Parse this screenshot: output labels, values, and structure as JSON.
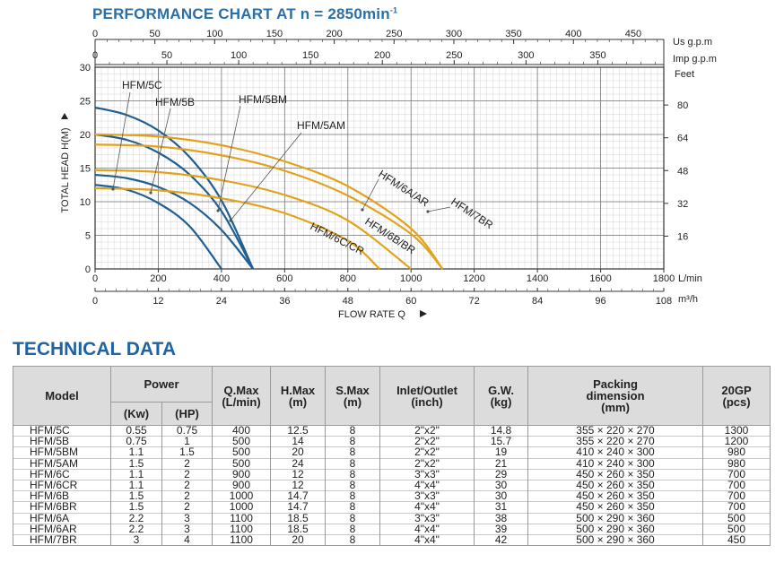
{
  "chart_title_main": "PERFORMANCE CHART AT n = 2850min",
  "chart_title_sup": "-1",
  "chart_data": {
    "type": "line",
    "title": "PERFORMANCE CHART AT n = 2850min-1",
    "xlabel": "FLOW RATE Q",
    "ylabel": "TOTAL HEAD H(M)",
    "x_unit_lmin": "L/min",
    "x_unit_m3h": "m³/h",
    "top_unit_us": "Us g.p.m",
    "top_unit_imp": "Imp g.p.m",
    "right_unit": "Feet",
    "xlim": [
      0,
      1800
    ],
    "ylim": [
      0,
      30
    ],
    "x_ticks_lmin": [
      "0",
      "200",
      "400",
      "600",
      "800",
      "1000",
      "1200",
      "1400",
      "1600",
      "1800"
    ],
    "x_ticks_m3h": [
      "0",
      "12",
      "24",
      "36",
      "48",
      "60",
      "72",
      "84",
      "96",
      "108"
    ],
    "y_ticks": [
      "0",
      "5",
      "10",
      "15",
      "20",
      "25",
      "30"
    ],
    "feet_ticks": [
      "16",
      "32",
      "48",
      "64",
      "80"
    ],
    "us_gpm_ticks": [
      "0",
      "50",
      "100",
      "150",
      "200",
      "250",
      "300",
      "350",
      "400",
      "450"
    ],
    "imp_gpm_ticks": [
      "0",
      "50",
      "100",
      "150",
      "200",
      "250",
      "300",
      "350"
    ],
    "grid": true,
    "series": [
      {
        "name": "HFM/5C",
        "color": "#1f5e93",
        "x": [
          0,
          100,
          200,
          300,
          400
        ],
        "y": [
          12.5,
          11.8,
          9.8,
          6.3,
          0
        ]
      },
      {
        "name": "HFM/5B",
        "color": "#1f5e93",
        "x": [
          0,
          100,
          200,
          300,
          400,
          500
        ],
        "y": [
          14,
          13.5,
          12.2,
          9.8,
          5.8,
          0
        ]
      },
      {
        "name": "HFM/5BM",
        "color": "#1f5e93",
        "x": [
          0,
          100,
          200,
          300,
          400,
          500
        ],
        "y": [
          20,
          19.2,
          17.3,
          14,
          8.6,
          0
        ]
      },
      {
        "name": "HFM/5AM",
        "color": "#1f5e93",
        "x": [
          0,
          100,
          200,
          300,
          400,
          500
        ],
        "y": [
          24,
          22.9,
          20.6,
          16.6,
          10.2,
          0
        ]
      },
      {
        "name": "HFM/6C/CR",
        "color": "#e3a21a",
        "x": [
          0,
          200,
          400,
          600,
          800,
          900
        ],
        "y": [
          12,
          11.7,
          10.5,
          8.3,
          4.2,
          0
        ]
      },
      {
        "name": "HFM/6B/BR",
        "color": "#e3a21a",
        "x": [
          0,
          200,
          400,
          600,
          800,
          1000
        ],
        "y": [
          14.7,
          14.4,
          13.2,
          11,
          7.2,
          0
        ]
      },
      {
        "name": "HFM/6A/AR",
        "color": "#e3a21a",
        "x": [
          0,
          200,
          400,
          600,
          800,
          1000,
          1100
        ],
        "y": [
          18.5,
          18.2,
          16.9,
          14.6,
          10.9,
          5.2,
          0
        ]
      },
      {
        "name": "HFM/7BR",
        "color": "#e3a21a",
        "x": [
          0,
          200,
          400,
          600,
          800,
          1000,
          1100
        ],
        "y": [
          20,
          19.7,
          18.4,
          16,
          12.3,
          6,
          0
        ]
      }
    ]
  },
  "section_title": "TECHNICAL DATA",
  "table": {
    "headers": {
      "model": "Model",
      "power": "Power",
      "kw": "(Kw)",
      "hp": "(HP)",
      "qmax": "Q.Max\n(L/min)",
      "hmax": "H.Max\n(m)",
      "smax": "S.Max\n(m)",
      "inlet": "Inlet/Outlet\n(inch)",
      "gw": "G.W.\n(kg)",
      "packing": "Packing\ndimension\n(mm)",
      "gp": "20GP\n(pcs)"
    },
    "rows": [
      [
        "HFM/5C",
        "0.55",
        "0.75",
        "400",
        "12.5",
        "8",
        "2\"x2\"",
        "14.8",
        "355 × 220 × 270",
        "1300"
      ],
      [
        "HFM/5B",
        "0.75",
        "1",
        "500",
        "14",
        "8",
        "2\"x2\"",
        "15.7",
        "355 × 220 × 270",
        "1200"
      ],
      [
        "HFM/5BM",
        "1.1",
        "1.5",
        "500",
        "20",
        "8",
        "2\"x2\"",
        "19",
        "410 × 240 × 300",
        "980"
      ],
      [
        "HFM/5AM",
        "1.5",
        "2",
        "500",
        "24",
        "8",
        "2\"x2\"",
        "21",
        "410 × 240 × 300",
        "980"
      ],
      [
        "HFM/6C",
        "1.1",
        "2",
        "900",
        "12",
        "8",
        "3\"x3\"",
        "29",
        "450 × 260 × 350",
        "700"
      ],
      [
        "HFM/6CR",
        "1.1",
        "2",
        "900",
        "12",
        "8",
        "4\"x4\"",
        "30",
        "450 × 260 × 350",
        "700"
      ],
      [
        "HFM/6B",
        "1.5",
        "2",
        "1000",
        "14.7",
        "8",
        "3\"x3\"",
        "30",
        "450 × 260 × 350",
        "700"
      ],
      [
        "HFM/6BR",
        "1.5",
        "2",
        "1000",
        "14.7",
        "8",
        "4\"x4\"",
        "31",
        "450 × 260 × 350",
        "700"
      ],
      [
        "HFM/6A",
        "2.2",
        "3",
        "1100",
        "18.5",
        "8",
        "3\"x3\"",
        "38",
        "500 × 290 × 360",
        "500"
      ],
      [
        "HFM/6AR",
        "2.2",
        "3",
        "1100",
        "18.5",
        "8",
        "4\"x4\"",
        "39",
        "500 × 290 × 360",
        "500"
      ],
      [
        "HFM/7BR",
        "3",
        "4",
        "1100",
        "20",
        "8",
        "4\"x4\"",
        "42",
        "500 × 290 × 360",
        "450"
      ]
    ]
  }
}
